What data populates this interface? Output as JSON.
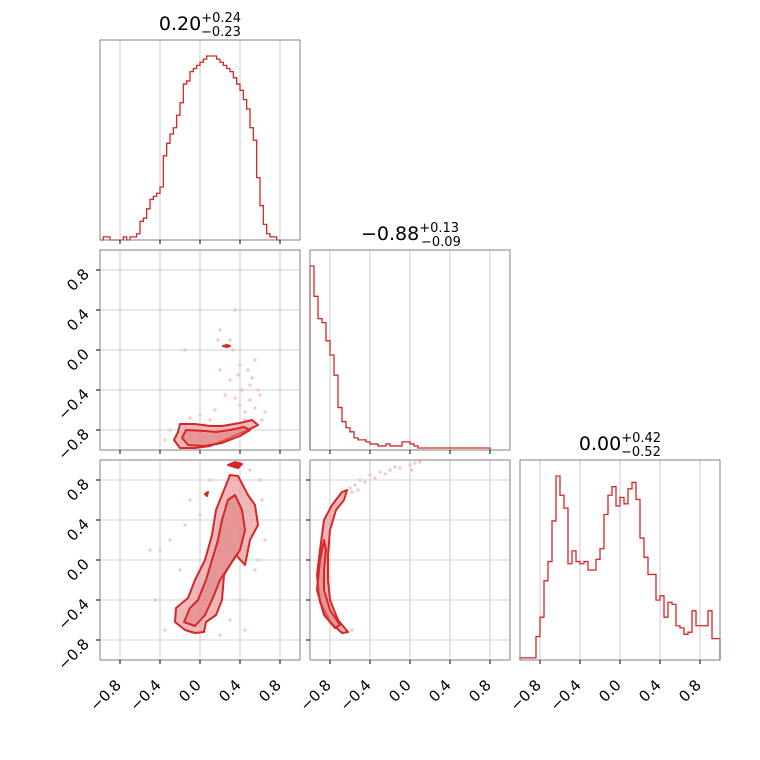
{
  "colors": {
    "accent": "#d62728",
    "fill": "#e8a0a0",
    "scatter": "#f2b8b8",
    "grid": "#c0c0c0",
    "frame": "#808080"
  },
  "titles": [
    {
      "value": "0.20",
      "plus": "+0.24",
      "minus": "−0.23"
    },
    {
      "value": "−0.88",
      "plus": "+0.13",
      "minus": "−0.09"
    },
    {
      "value": "0.00",
      "plus": "+0.42",
      "minus": "−0.52"
    }
  ],
  "chart_data": {
    "type": "corner",
    "n_params": 3,
    "range": [
      -1.0,
      1.0
    ],
    "ticks": [
      -0.8,
      -0.4,
      0.0,
      0.4,
      0.8
    ],
    "tick_labels": [
      "−0.8",
      "−0.4",
      "0.0",
      "0.4",
      "0.8"
    ],
    "grid": true,
    "histograms": [
      {
        "param": 0,
        "bin_edges": [
          -1.0,
          0.8
        ],
        "counts": [
          0,
          1,
          1,
          0,
          0,
          0,
          0,
          1,
          0,
          1,
          1,
          2,
          6,
          7,
          10,
          13,
          14,
          15,
          17,
          27,
          31,
          34,
          36,
          40,
          44,
          50,
          51,
          54,
          55,
          56,
          57,
          58,
          59,
          59,
          59,
          58,
          57,
          56,
          55,
          54,
          52,
          50,
          48,
          45,
          42,
          36,
          32,
          20,
          11,
          5,
          2,
          1,
          1,
          0
        ],
        "norm": "peak"
      },
      {
        "param": 1,
        "bins": [
          -0.98,
          -0.94,
          -0.9,
          -0.86,
          -0.82,
          -0.78,
          -0.74,
          -0.7,
          -0.66,
          -0.62,
          -0.58,
          -0.54,
          -0.5,
          -0.46,
          -0.42,
          -0.38,
          -0.34,
          -0.3,
          -0.26,
          -0.22,
          -0.18,
          -0.14,
          -0.1,
          -0.06,
          -0.02,
          0.02,
          0.06,
          0.1,
          0.14,
          0.18,
          0.22,
          0.26,
          0.3,
          0.34,
          0.38,
          0.42,
          0.46,
          0.5,
          0.54,
          0.58,
          0.62,
          0.66,
          0.7,
          0.74,
          0.78
        ],
        "counts": [
          0.91,
          0.76,
          0.65,
          0.63,
          0.54,
          0.47,
          0.37,
          0.21,
          0.14,
          0.11,
          0.09,
          0.06,
          0.05,
          0.05,
          0.04,
          0.03,
          0.03,
          0.02,
          0.02,
          0.03,
          0.02,
          0.02,
          0.02,
          0.04,
          0.04,
          0.03,
          0.02,
          0.01,
          0.01,
          0.01,
          0.01,
          0.01,
          0.01,
          0.01,
          0.01,
          0.01,
          0.01,
          0.01,
          0.01,
          0.01,
          0.01,
          0.01,
          0.01,
          0.01,
          0.01
        ]
      },
      {
        "param": 2,
        "bins": [
          -0.98,
          -0.94,
          -0.9,
          -0.86,
          -0.82,
          -0.78,
          -0.74,
          -0.7,
          -0.66,
          -0.62,
          -0.58,
          -0.54,
          -0.5,
          -0.46,
          -0.42,
          -0.38,
          -0.34,
          -0.3,
          -0.26,
          -0.22,
          -0.18,
          -0.14,
          -0.1,
          -0.06,
          -0.02,
          0.02,
          0.06,
          0.1,
          0.14,
          0.18,
          0.22,
          0.26,
          0.3,
          0.34,
          0.38,
          0.42,
          0.46,
          0.5,
          0.54,
          0.58,
          0.62,
          0.66,
          0.7,
          0.74,
          0.78,
          0.82,
          0.86,
          0.9,
          0.94,
          0.98
        ],
        "counts": [
          0.01,
          0.01,
          0.01,
          0.01,
          0.11,
          0.2,
          0.37,
          0.46,
          0.65,
          0.86,
          0.77,
          0.71,
          0.45,
          0.51,
          0.46,
          0.45,
          0.46,
          0.42,
          0.42,
          0.47,
          0.52,
          0.68,
          0.77,
          0.81,
          0.72,
          0.76,
          0.73,
          0.8,
          0.83,
          0.75,
          0.57,
          0.48,
          0.4,
          0.4,
          0.28,
          0.3,
          0.2,
          0.27,
          0.26,
          0.16,
          0.15,
          0.12,
          0.13,
          0.23,
          0.16,
          0.16,
          0.16,
          0.23,
          0.1,
          0.1
        ]
      }
    ],
    "pairs": [
      {
        "x_param": 0,
        "y_param": 1,
        "contours": [
          {
            "level": "outer",
            "points": [
              [
                -0.2,
                -0.74
              ],
              [
                -0.05,
                -0.74
              ],
              [
                0.1,
                -0.76
              ],
              [
                0.22,
                -0.76
              ],
              [
                0.4,
                -0.73
              ],
              [
                0.52,
                -0.7
              ],
              [
                0.58,
                -0.75
              ],
              [
                0.48,
                -0.8
              ],
              [
                0.36,
                -0.85
              ],
              [
                0.25,
                -0.9
              ],
              [
                0.1,
                -0.96
              ],
              [
                -0.05,
                -0.98
              ],
              [
                -0.2,
                -0.98
              ],
              [
                -0.26,
                -0.9
              ],
              [
                -0.22,
                -0.82
              ]
            ]
          },
          {
            "level": "inner",
            "points": [
              [
                -0.14,
                -0.8
              ],
              [
                0.05,
                -0.81
              ],
              [
                0.16,
                -0.82
              ],
              [
                0.3,
                -0.8
              ],
              [
                0.44,
                -0.77
              ],
              [
                0.5,
                -0.8
              ],
              [
                0.4,
                -0.86
              ],
              [
                0.22,
                -0.93
              ],
              [
                0.05,
                -0.96
              ],
              [
                -0.12,
                -0.95
              ],
              [
                -0.18,
                -0.88
              ]
            ]
          },
          {
            "level": "blob",
            "points": [
              [
                0.23,
                0.04
              ],
              [
                0.27,
                0.05
              ],
              [
                0.3,
                0.04
              ],
              [
                0.27,
                0.03
              ]
            ]
          }
        ],
        "scatter": [
          [
            0.4,
            -0.55
          ],
          [
            0.45,
            -0.62
          ],
          [
            0.5,
            -0.5
          ],
          [
            0.55,
            -0.58
          ],
          [
            0.35,
            -0.48
          ],
          [
            0.3,
            -0.3
          ],
          [
            0.2,
            -0.2
          ],
          [
            0.6,
            -0.45
          ],
          [
            0.65,
            -0.62
          ],
          [
            0.42,
            -0.4
          ],
          [
            0.5,
            -0.35
          ],
          [
            0.38,
            -0.25
          ],
          [
            0.25,
            -0.45
          ],
          [
            0.15,
            -0.6
          ],
          [
            0.0,
            -0.65
          ],
          [
            -0.1,
            -0.68
          ],
          [
            0.48,
            -0.2
          ],
          [
            0.55,
            -0.1
          ],
          [
            0.3,
            0.1
          ],
          [
            0.2,
            0.2
          ],
          [
            0.35,
            0.4
          ],
          [
            0.18,
            0.1
          ],
          [
            -0.3,
            -0.8
          ],
          [
            -0.35,
            -0.9
          ],
          [
            0.62,
            -0.7
          ],
          [
            0.45,
            -0.7
          ],
          [
            0.58,
            -0.4
          ],
          [
            0.52,
            -0.28
          ],
          [
            0.4,
            -0.15
          ],
          [
            0.33,
            0.0
          ],
          [
            -0.15,
            0.0
          ],
          [
            0.1,
            -0.7
          ],
          [
            0.05,
            -0.75
          ]
        ]
      },
      {
        "x_param": 0,
        "y_param": 2,
        "contours": [
          {
            "level": "outer",
            "points": [
              [
                -0.25,
                -0.62
              ],
              [
                -0.24,
                -0.48
              ],
              [
                -0.12,
                -0.38
              ],
              [
                -0.05,
                -0.2
              ],
              [
                0.05,
                0.0
              ],
              [
                0.12,
                0.25
              ],
              [
                0.16,
                0.5
              ],
              [
                0.24,
                0.7
              ],
              [
                0.3,
                0.85
              ],
              [
                0.38,
                0.84
              ],
              [
                0.48,
                0.65
              ],
              [
                0.55,
                0.55
              ],
              [
                0.58,
                0.35
              ],
              [
                0.5,
                0.2
              ],
              [
                0.45,
                -0.05
              ],
              [
                0.36,
                0.05
              ],
              [
                0.24,
                -0.15
              ],
              [
                0.22,
                -0.4
              ],
              [
                0.16,
                -0.55
              ],
              [
                0.06,
                -0.62
              ],
              [
                0.04,
                -0.72
              ],
              [
                -0.05,
                -0.73
              ],
              [
                -0.15,
                -0.7
              ]
            ]
          },
          {
            "level": "inner",
            "points": [
              [
                -0.16,
                -0.62
              ],
              [
                -0.1,
                -0.48
              ],
              [
                -0.02,
                -0.4
              ],
              [
                0.06,
                -0.2
              ],
              [
                0.12,
                0.0
              ],
              [
                0.18,
                0.2
              ],
              [
                0.22,
                0.4
              ],
              [
                0.28,
                0.6
              ],
              [
                0.35,
                0.65
              ],
              [
                0.42,
                0.5
              ],
              [
                0.45,
                0.3
              ],
              [
                0.4,
                0.1
              ],
              [
                0.3,
                -0.05
              ],
              [
                0.2,
                -0.2
              ],
              [
                0.12,
                -0.4
              ],
              [
                0.05,
                -0.55
              ],
              [
                -0.05,
                -0.66
              ]
            ]
          },
          {
            "level": "blob",
            "points": [
              [
                0.28,
                0.95
              ],
              [
                0.35,
                0.98
              ],
              [
                0.42,
                0.96
              ],
              [
                0.38,
                0.92
              ]
            ]
          },
          {
            "level": "blob",
            "points": [
              [
                0.05,
                0.66
              ],
              [
                0.08,
                0.68
              ],
              [
                0.07,
                0.64
              ]
            ]
          }
        ],
        "scatter": [
          [
            -0.3,
            0.2
          ],
          [
            -0.4,
            0.1
          ],
          [
            -0.15,
            0.35
          ],
          [
            0.0,
            0.45
          ],
          [
            -0.2,
            -0.1
          ],
          [
            0.6,
            0.8
          ],
          [
            0.5,
            0.9
          ],
          [
            0.65,
            0.2
          ],
          [
            0.55,
            -0.1
          ],
          [
            0.4,
            -0.4
          ],
          [
            0.3,
            -0.6
          ],
          [
            -0.35,
            -0.7
          ],
          [
            -0.45,
            -0.4
          ],
          [
            0.1,
            0.8
          ],
          [
            0.45,
            -0.7
          ],
          [
            0.58,
            0.0
          ],
          [
            0.62,
            0.6
          ],
          [
            -0.5,
            0.1
          ],
          [
            0.2,
            -0.75
          ],
          [
            -0.1,
            0.6
          ]
        ]
      },
      {
        "x_param": 1,
        "y_param": 2,
        "contours": [
          {
            "level": "outer",
            "points": [
              [
                -0.9,
                0.1
              ],
              [
                -0.86,
                0.4
              ],
              [
                -0.78,
                0.55
              ],
              [
                -0.68,
                0.68
              ],
              [
                -0.63,
                0.7
              ],
              [
                -0.66,
                0.6
              ],
              [
                -0.74,
                0.5
              ],
              [
                -0.8,
                0.3
              ],
              [
                -0.82,
                0.05
              ],
              [
                -0.82,
                -0.2
              ],
              [
                -0.8,
                -0.4
              ],
              [
                -0.72,
                -0.6
              ],
              [
                -0.62,
                -0.72
              ],
              [
                -0.68,
                -0.73
              ],
              [
                -0.8,
                -0.62
              ],
              [
                -0.9,
                -0.42
              ],
              [
                -0.93,
                -0.15
              ]
            ]
          },
          {
            "level": "inner",
            "points": [
              [
                -0.93,
                -0.3
              ],
              [
                -0.9,
                0.0
              ],
              [
                -0.86,
                0.2
              ],
              [
                -0.84,
                0.1
              ],
              [
                -0.86,
                -0.1
              ],
              [
                -0.86,
                -0.3
              ],
              [
                -0.8,
                -0.5
              ],
              [
                -0.7,
                -0.65
              ],
              [
                -0.75,
                -0.68
              ],
              [
                -0.86,
                -0.55
              ]
            ]
          }
        ],
        "scatter": [
          [
            -0.5,
            0.8
          ],
          [
            -0.4,
            0.85
          ],
          [
            -0.3,
            0.88
          ],
          [
            -0.2,
            0.9
          ],
          [
            -0.1,
            0.92
          ],
          [
            0.0,
            0.95
          ],
          [
            0.05,
            0.97
          ],
          [
            -0.55,
            0.75
          ],
          [
            -0.45,
            0.78
          ],
          [
            -0.35,
            0.82
          ],
          [
            -0.25,
            0.86
          ],
          [
            -0.6,
            0.72
          ],
          [
            -0.58,
            0.68
          ],
          [
            -0.52,
            0.7
          ],
          [
            0.1,
            0.98
          ],
          [
            -0.15,
            0.93
          ],
          [
            0.02,
            0.9
          ],
          [
            -0.62,
            -0.72
          ],
          [
            -0.58,
            -0.7
          ]
        ]
      }
    ]
  }
}
